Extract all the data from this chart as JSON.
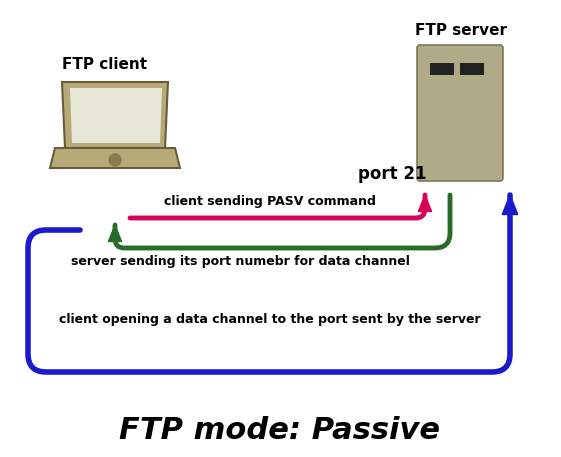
{
  "title": "FTP mode: Passive",
  "title_fontsize": 22,
  "title_fontweight": "bold",
  "bg_color": "#ffffff",
  "client_label": "FTP client",
  "server_label": "FTP server",
  "port21_label": "port 21",
  "arrow1_label": "client sending PASV command",
  "arrow2_label": "server sending its port numebr for data channel",
  "arrow3_label": "client opening a data channel to the port sent by the server",
  "arrow_pink_color": "#d4005a",
  "arrow_green_color": "#2a6b2a",
  "arrow_blue_color": "#1a1acc",
  "label_fontsize": 9,
  "port_fontsize": 12,
  "lw_thin": 3.5,
  "lw_thick": 4.0,
  "laptop_color": "#b8aa78",
  "laptop_screen_color": "#e8e8d8",
  "server_color": "#b0aa88",
  "slot_color": "#222222"
}
